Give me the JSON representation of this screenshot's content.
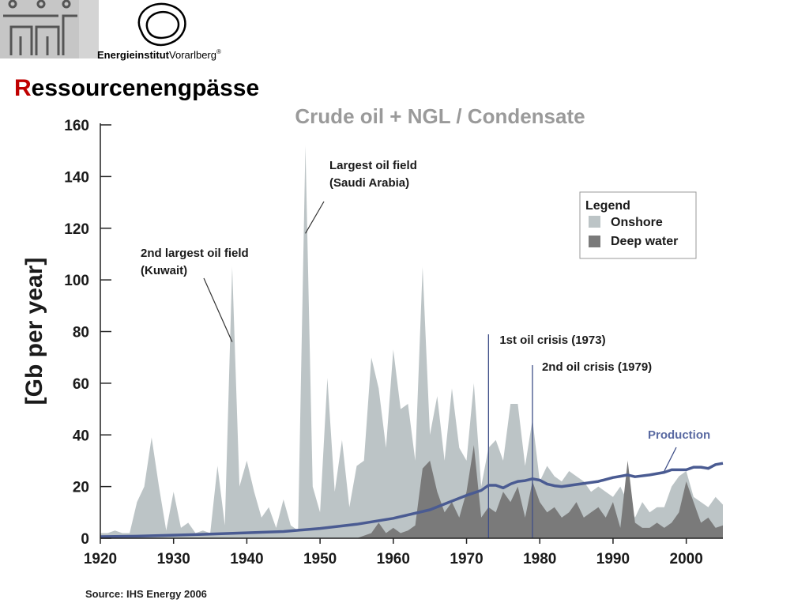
{
  "header": {
    "org_name_bold": "Energieinstitut",
    "org_name_regular": "Vorarlberg",
    "org_trademark": "®",
    "title_initial": "R",
    "title_rest": "essourcenengpässe"
  },
  "colors": {
    "title_accent": "#c00000",
    "onshore": "#bcc4c6",
    "deep_water": "#7a7a7a",
    "production": "#4a5b92",
    "annotation_line": "#3f4f88"
  },
  "chart_data": {
    "type": "area",
    "title": "Crude oil + NGL / Condensate",
    "ylabel": "[Gb per year]",
    "xlim": [
      1920,
      2005
    ],
    "ylim": [
      0,
      160
    ],
    "xticks": [
      1920,
      1930,
      1940,
      1950,
      1960,
      1970,
      1980,
      1990,
      2000
    ],
    "yticks": [
      0,
      20,
      40,
      60,
      80,
      100,
      120,
      140,
      160
    ],
    "grid": false,
    "legend": {
      "title": "Legend",
      "position": "top-right",
      "entries": [
        "Onshore",
        "Deep water"
      ]
    },
    "series": [
      {
        "name": "Onshore",
        "style": "area",
        "x": [
          1920,
          1921,
          1922,
          1923,
          1924,
          1925,
          1926,
          1927,
          1928,
          1929,
          1930,
          1931,
          1932,
          1933,
          1934,
          1935,
          1936,
          1937,
          1938,
          1939,
          1940,
          1941,
          1942,
          1943,
          1944,
          1945,
          1946,
          1947,
          1948,
          1949,
          1950,
          1951,
          1952,
          1953,
          1954,
          1955,
          1956,
          1957,
          1958,
          1959,
          1960,
          1961,
          1962,
          1963,
          1964,
          1965,
          1966,
          1967,
          1968,
          1969,
          1970,
          1971,
          1972,
          1973,
          1974,
          1975,
          1976,
          1977,
          1978,
          1979,
          1980,
          1981,
          1982,
          1983,
          1984,
          1985,
          1986,
          1987,
          1988,
          1989,
          1990,
          1991,
          1992,
          1993,
          1994,
          1995,
          1996,
          1997,
          1998,
          1999,
          2000,
          2001,
          2002,
          2003,
          2004,
          2005
        ],
        "y": [
          2,
          2,
          3,
          2,
          2,
          14,
          20,
          39,
          20,
          3,
          18,
          4,
          6,
          2,
          3,
          2,
          28,
          5,
          105,
          20,
          30,
          18,
          8,
          12,
          4,
          15,
          5,
          3,
          152,
          20,
          10,
          62,
          18,
          38,
          12,
          28,
          30,
          70,
          58,
          35,
          73,
          50,
          52,
          30,
          105,
          40,
          55,
          30,
          58,
          35,
          30,
          60,
          20,
          35,
          38,
          30,
          52,
          52,
          28,
          46,
          22,
          28,
          24,
          22,
          26,
          24,
          22,
          18,
          20,
          18,
          16,
          20,
          14,
          8,
          14,
          10,
          12,
          12,
          20,
          24,
          26,
          16,
          14,
          12,
          16,
          13
        ]
      },
      {
        "name": "Deep water",
        "style": "area",
        "x": [
          1955,
          1956,
          1957,
          1958,
          1959,
          1960,
          1961,
          1962,
          1963,
          1964,
          1965,
          1966,
          1967,
          1968,
          1969,
          1970,
          1971,
          1972,
          1973,
          1974,
          1975,
          1976,
          1977,
          1978,
          1979,
          1980,
          1981,
          1982,
          1983,
          1984,
          1985,
          1986,
          1987,
          1988,
          1989,
          1990,
          1991,
          1992,
          1993,
          1994,
          1995,
          1996,
          1997,
          1998,
          1999,
          2000,
          2001,
          2002,
          2003,
          2004,
          2005
        ],
        "y": [
          0,
          1,
          2,
          6,
          2,
          4,
          2,
          3,
          5,
          27,
          30,
          18,
          10,
          14,
          8,
          18,
          36,
          8,
          12,
          10,
          18,
          14,
          20,
          8,
          22,
          14,
          10,
          12,
          8,
          10,
          14,
          8,
          10,
          12,
          8,
          14,
          4,
          30,
          6,
          4,
          4,
          6,
          4,
          6,
          10,
          22,
          14,
          6,
          8,
          4,
          5
        ]
      },
      {
        "name": "Production",
        "style": "line",
        "x": [
          1920,
          1925,
          1930,
          1935,
          1940,
          1945,
          1950,
          1955,
          1960,
          1965,
          1970,
          1972,
          1973,
          1974,
          1975,
          1976,
          1977,
          1978,
          1979,
          1980,
          1981,
          1982,
          1983,
          1985,
          1988,
          1990,
          1991,
          1992,
          1993,
          1995,
          1997,
          1998,
          2000,
          2001,
          2002,
          2003,
          2004,
          2005
        ],
        "y": [
          0.6,
          0.8,
          1.2,
          1.6,
          2.1,
          2.6,
          3.8,
          5.4,
          7.7,
          11,
          16.6,
          18.5,
          20.5,
          20.5,
          19.5,
          21,
          22,
          22.3,
          23,
          22.5,
          21,
          20.3,
          20,
          20.8,
          22,
          23.5,
          24,
          24.5,
          23.8,
          24.5,
          25.5,
          26.5,
          26.5,
          27.5,
          27.5,
          27,
          28.5,
          29
        ]
      }
    ],
    "annotations": [
      {
        "text_lines": [
          "Largest oil field",
          "(Saudi Arabia)"
        ],
        "x": 1948,
        "y": 118
      },
      {
        "text_lines": [
          "2nd largest oil field",
          "(Kuwait)"
        ],
        "x": 1938,
        "y": 76
      },
      {
        "text_lines": [
          "1st oil crisis (1973)"
        ],
        "x": 1973,
        "y": 0
      },
      {
        "text_lines": [
          "2nd oil crisis (1979)"
        ],
        "x": 1979,
        "y": 0
      },
      {
        "text_lines": [
          "Production"
        ],
        "x": 1997,
        "y": 26
      }
    ],
    "source": "Source: IHS Energy 2006"
  }
}
